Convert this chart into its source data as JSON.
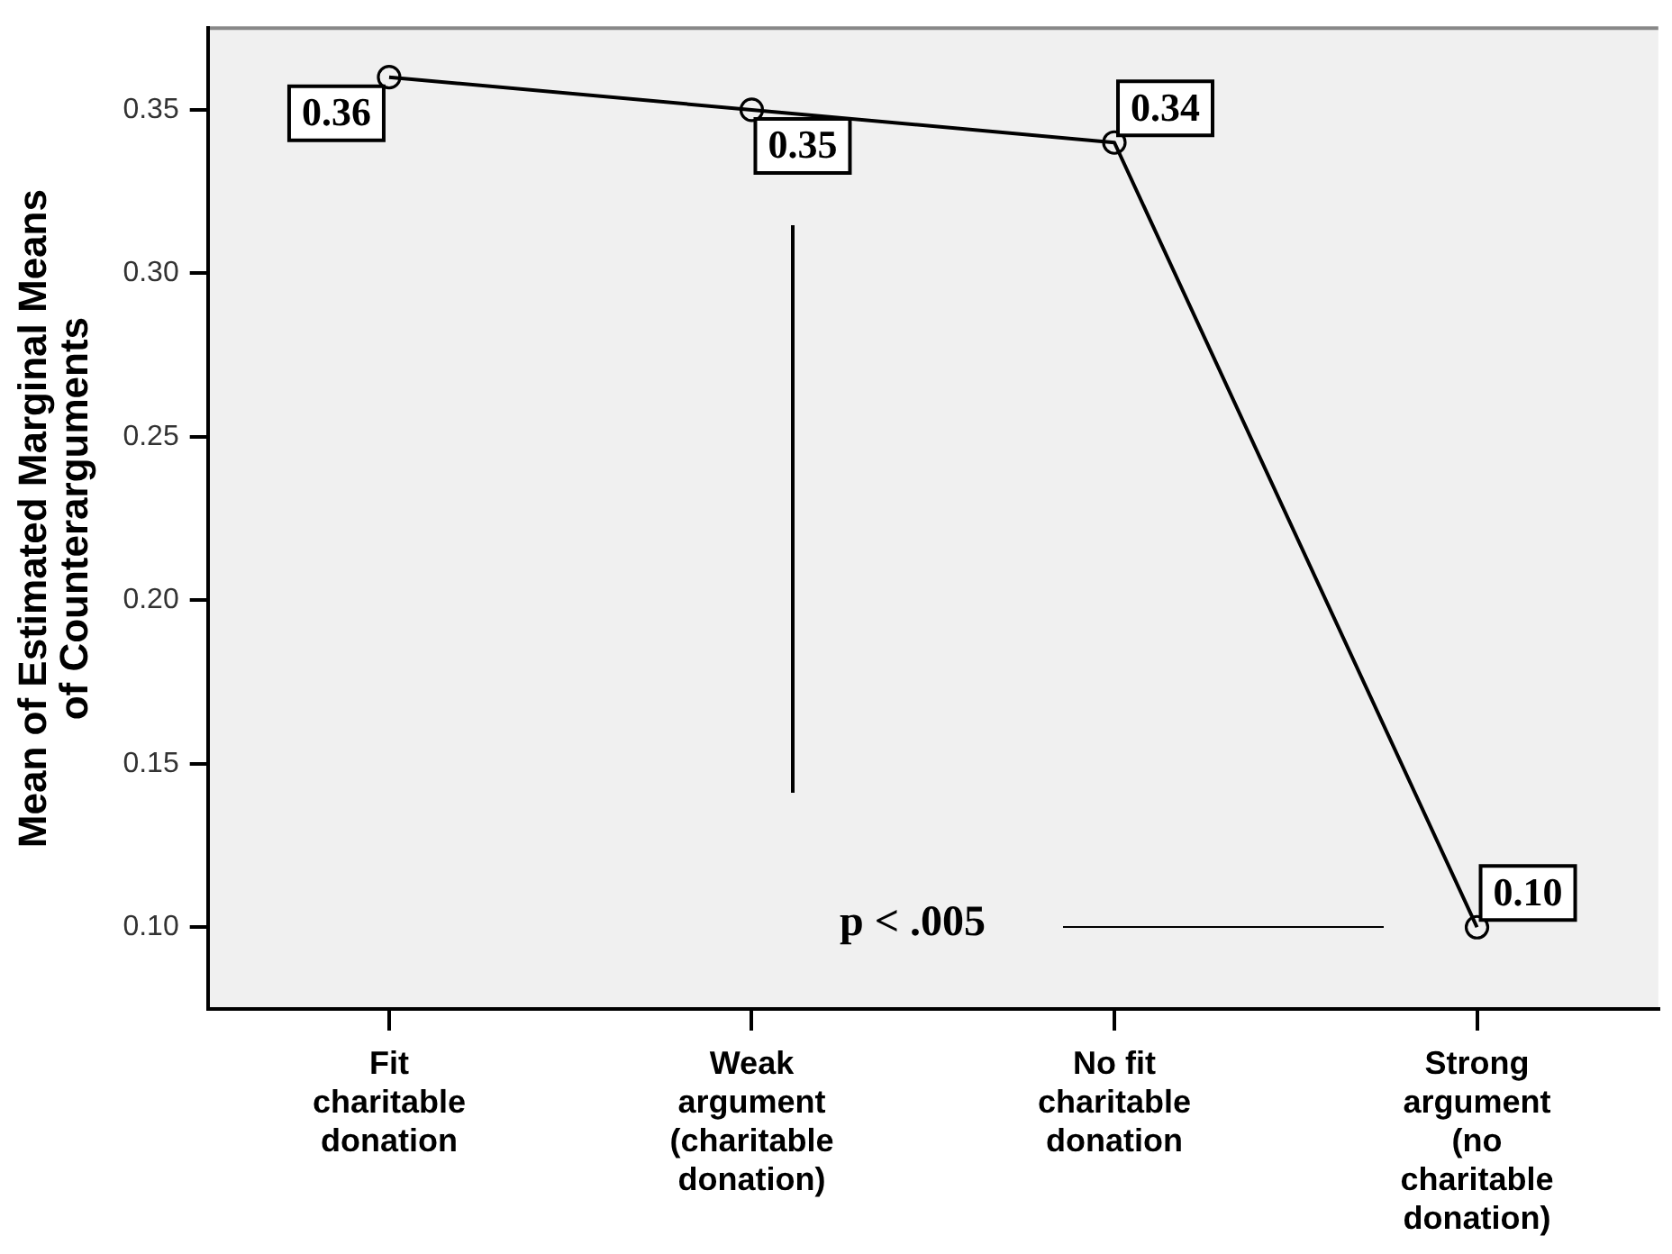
{
  "chart_data": {
    "type": "line",
    "ylabel": "Mean of Estimated Marginal Means of Counterarguments",
    "categories": [
      "Fit charitable donation",
      "Weak argument (charitable donation)",
      "No fit charitable donation",
      "Strong argument (no charitable donation)"
    ],
    "series": [
      {
        "color": "#000000",
        "values": [
          0.36,
          0.35,
          0.34,
          0.1
        ],
        "value_labels": [
          "0.36",
          "0.35",
          "0.34",
          "0.10"
        ]
      }
    ],
    "marker": "circle",
    "line_style": "solid",
    "grid": false,
    "legend": false,
    "ylim": [
      0.075,
      0.375
    ],
    "yticks": [
      {
        "value": 0.1,
        "label": "0.10"
      },
      0.15,
      {
        "value": 0.2,
        "label": "0.20"
      },
      0.25,
      {
        "value": 0.3,
        "label": "0.30"
      },
      0.35
    ],
    "annotations": [
      "p < .005"
    ]
  }
}
